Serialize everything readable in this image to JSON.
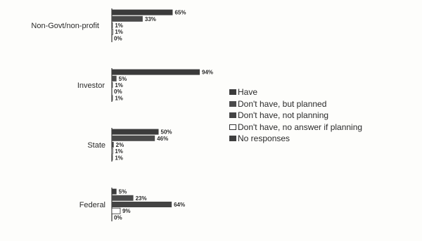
{
  "chart_data": {
    "type": "bar",
    "orientation": "horizontal",
    "categories": [
      "Non-Govt/non-profit",
      "Investor",
      "State",
      "Federal"
    ],
    "series": [
      {
        "name": "Have",
        "values": [
          65,
          94,
          50,
          5
        ]
      },
      {
        "name": "Don't have, but planned",
        "values": [
          33,
          5,
          46,
          23
        ]
      },
      {
        "name": "Don't have, not planning",
        "values": [
          1,
          1,
          2,
          64
        ]
      },
      {
        "name": "Don't have, no answer if planning",
        "values": [
          1,
          0,
          1,
          9
        ]
      },
      {
        "name": "No responses",
        "values": [
          0,
          1,
          1,
          0
        ]
      }
    ],
    "value_suffix": "%",
    "xlim": [
      0,
      100
    ],
    "legend_position": "right",
    "grid": false
  },
  "colors": {
    "have": "#3b3b3b",
    "planned": "#4a4a4a",
    "not_planning": "#444444",
    "no_answer": "#ffffff",
    "no_response": "#3f3f3f"
  }
}
